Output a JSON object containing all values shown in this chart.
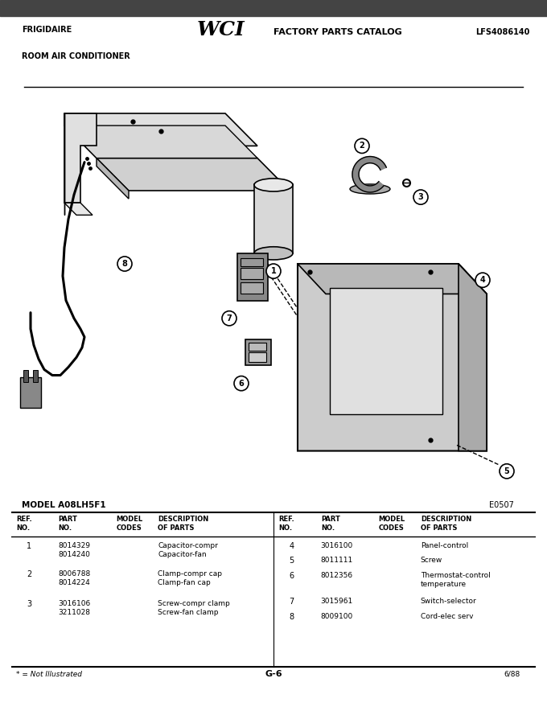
{
  "title_left_line1": "FRIGIDAIRE",
  "title_left_line2": "ROOM AIR CONDITIONER",
  "title_center": "FACTORY PARTS CATALOG",
  "title_right": "LFS4086140",
  "model": "MODEL A08LH5F1",
  "diagram_code": "E0507",
  "page_center": "G-6",
  "page_date": "6/88",
  "footnote": "* = Not Illustrated",
  "bg_color": "#ffffff",
  "parts_left": [
    {
      "ref": "1",
      "part": "8014329\n8014240",
      "model": "",
      "desc": "Capacitor-compr\nCapacitor-fan"
    },
    {
      "ref": "2",
      "part": "8006788\n8014224",
      "model": "",
      "desc": "Clamp-compr cap\nClamp-fan cap"
    },
    {
      "ref": "3",
      "part": "3016106\n3211028",
      "model": "",
      "desc": "Screw-compr clamp\nScrew-fan clamp"
    }
  ],
  "parts_right": [
    {
      "ref": "4",
      "part": "3016100",
      "model": "",
      "desc": "Panel-control"
    },
    {
      "ref": "5",
      "part": "8011111",
      "model": "",
      "desc": "Screw"
    },
    {
      "ref": "6",
      "part": "8012356",
      "model": "",
      "desc": "Thermostat-control\ntemperature"
    },
    {
      "ref": "7",
      "part": "3015961",
      "model": "",
      "desc": "Switch-selector"
    },
    {
      "ref": "8",
      "part": "8009100",
      "model": "",
      "desc": "Cord-elec serv"
    }
  ]
}
